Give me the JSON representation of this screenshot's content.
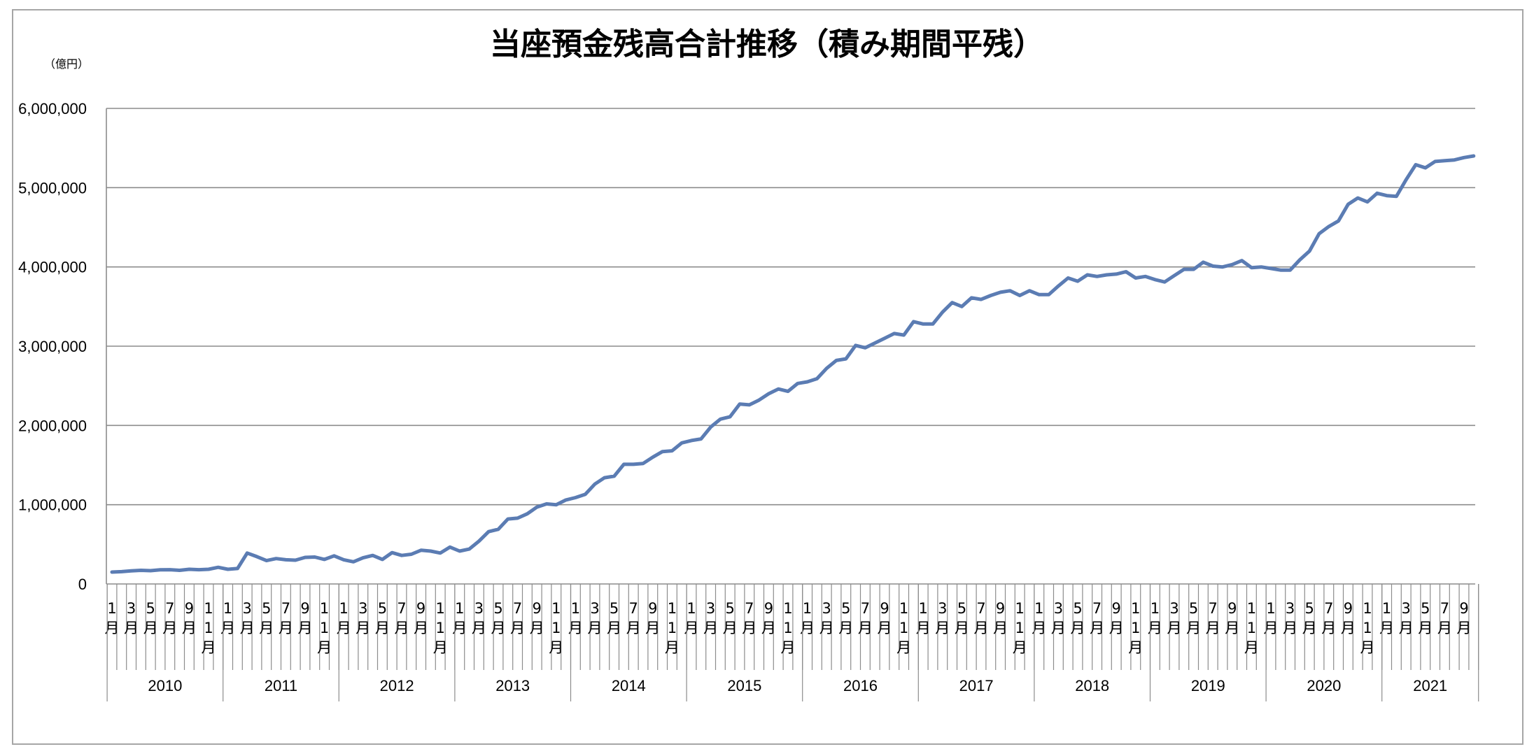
{
  "chart_data": {
    "type": "line",
    "title": "当座預金残高合計推移（積み期間平残）",
    "unit_label": "（億円）",
    "ylim": [
      0,
      6000000
    ],
    "yticks": [
      {
        "value": 0,
        "label": "0"
      },
      {
        "value": 1000000,
        "label": "1,000,000"
      },
      {
        "value": 2000000,
        "label": "2,000,000"
      },
      {
        "value": 3000000,
        "label": "3,000,000"
      },
      {
        "value": 4000000,
        "label": "4,000,000"
      },
      {
        "value": 5000000,
        "label": "5,000,000"
      },
      {
        "value": 6000000,
        "label": "6,000,000"
      }
    ],
    "grid": true,
    "line_color": "#5b7cb3",
    "years": [
      "2010",
      "2011",
      "2012",
      "2013",
      "2014",
      "2015",
      "2016",
      "2017",
      "2018",
      "2019",
      "2020",
      "2021"
    ],
    "month_labels_full_year": [
      "1\n月",
      "3\n月",
      "5\n月",
      "7\n月",
      "9\n月",
      "1\n1\n月"
    ],
    "month_labels_last_year": [
      "1\n月",
      "3\n月",
      "5\n月",
      "7\n月",
      "9\n月"
    ],
    "series": [
      {
        "values": [
          150000,
          155000,
          165000,
          172000,
          168000,
          178000,
          180000,
          172000,
          185000,
          180000,
          185000,
          210000,
          185000,
          195000,
          390000,
          345000,
          295000,
          320000,
          305000,
          300000,
          335000,
          340000,
          310000,
          355000,
          305000,
          280000,
          330000,
          360000,
          310000,
          395000,
          360000,
          375000,
          425000,
          415000,
          390000,
          465000,
          415000,
          440000,
          540000,
          660000,
          690000,
          820000,
          830000,
          885000,
          970000,
          1010000,
          1000000,
          1060000,
          1090000,
          1130000,
          1260000,
          1340000,
          1360000,
          1510000,
          1510000,
          1520000,
          1600000,
          1670000,
          1680000,
          1780000,
          1810000,
          1830000,
          1980000,
          2080000,
          2110000,
          2270000,
          2260000,
          2320000,
          2400000,
          2460000,
          2430000,
          2530000,
          2550000,
          2590000,
          2720000,
          2820000,
          2840000,
          3010000,
          2980000,
          3040000,
          3100000,
          3160000,
          3140000,
          3310000,
          3280000,
          3280000,
          3430000,
          3550000,
          3500000,
          3610000,
          3590000,
          3640000,
          3680000,
          3700000,
          3640000,
          3700000,
          3650000,
          3650000,
          3760000,
          3860000,
          3820000,
          3900000,
          3880000,
          3900000,
          3910000,
          3940000,
          3860000,
          3880000,
          3840000,
          3810000,
          3890000,
          3970000,
          3970000,
          4060000,
          4010000,
          4000000,
          4030000,
          4080000,
          3990000,
          4000000,
          3980000,
          3960000,
          3960000,
          4090000,
          4200000,
          4420000,
          4510000,
          4580000,
          4790000,
          4870000,
          4820000,
          4930000,
          4900000,
          4890000,
          5100000,
          5290000,
          5250000,
          5330000,
          5340000,
          5350000,
          5380000,
          5400000
        ]
      }
    ]
  }
}
